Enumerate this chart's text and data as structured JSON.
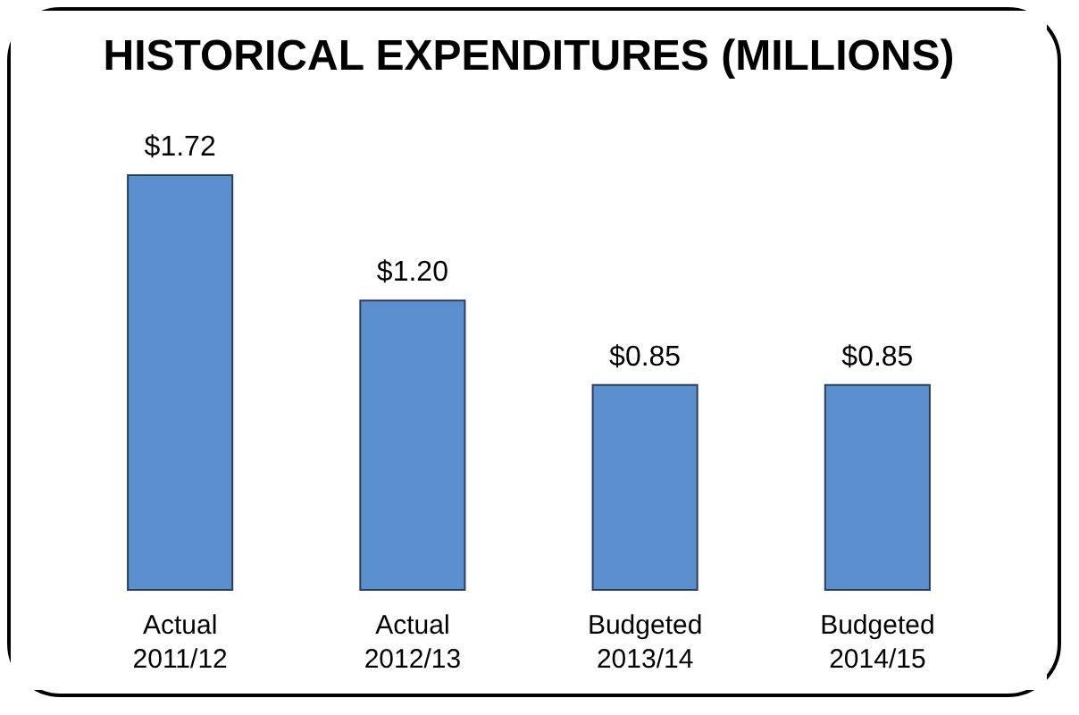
{
  "chart_data": {
    "type": "bar",
    "title": "HISTORICAL EXPENDITURES (MILLIONS)",
    "categories": [
      "Actual 2011/12",
      "Actual 2012/13",
      "Budgeted 2013/14",
      "Budgeted 2014/15"
    ],
    "values": [
      1.72,
      1.2,
      0.85,
      0.85
    ],
    "value_labels": [
      "$1.72",
      "$1.20",
      "$0.85",
      "$0.85"
    ],
    "color": "#5b8fd0"
  }
}
